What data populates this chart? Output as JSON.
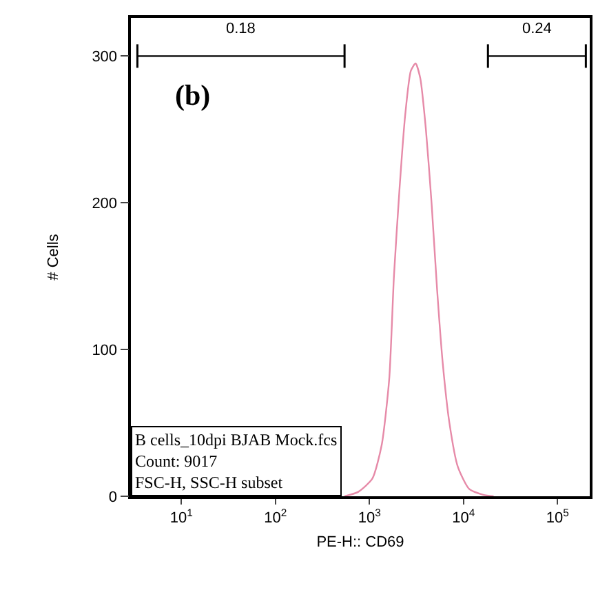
{
  "chart_data": {
    "type": "line",
    "xlabel": "PE-H:: CD69",
    "ylabel": "# Cells",
    "log": "x",
    "x": [
      543,
      759,
      1072,
      1349,
      1622,
      1820,
      2089,
      2399,
      2754,
      3090,
      3467,
      3981,
      4571,
      5248,
      6026,
      7079,
      8710,
      11482,
      16218,
      20893
    ],
    "series": [
      {
        "color": "#e68aa8",
        "values": [
          0,
          3,
          12,
          35,
          80,
          150,
          210,
          260,
          290,
          295,
          285,
          250,
          200,
          140,
          90,
          50,
          20,
          5,
          1,
          0
        ]
      },
      {
        "type": "line",
        "name": "0.18",
        "color": "#000000",
        "x": [
          3.4,
          543
        ],
        "values": [
          300,
          300
        ],
        "errors": [
          8,
          8
        ]
      },
      {
        "type": "line",
        "name": "0.24",
        "color": "#000000",
        "x": [
          18200,
          200000
        ],
        "values": [
          300,
          300
        ],
        "errors": [
          8,
          8
        ]
      }
    ],
    "xlim": [
      2.9,
      220000
    ],
    "ylim": [
      0,
      326
    ],
    "xticks": [
      {
        "value": 10,
        "label": "10$^{1}$"
      },
      {
        "value": 100,
        "label": "10$^{2}$"
      },
      {
        "value": 1000,
        "label": "10$^{3}$"
      },
      {
        "value": 10000,
        "label": "10$^{4}$"
      },
      {
        "value": 100000,
        "label": "10$^{5}$"
      }
    ],
    "yticks": [
      0,
      100,
      200,
      300
    ],
    "grid": false,
    "marker": "none",
    "line_style": "solid",
    "annotations": [
      "(b)",
      "B cells_10dpi BJAB Mock.fcs",
      "Count: 9017",
      "FSC-H, SSC-H subset"
    ]
  }
}
